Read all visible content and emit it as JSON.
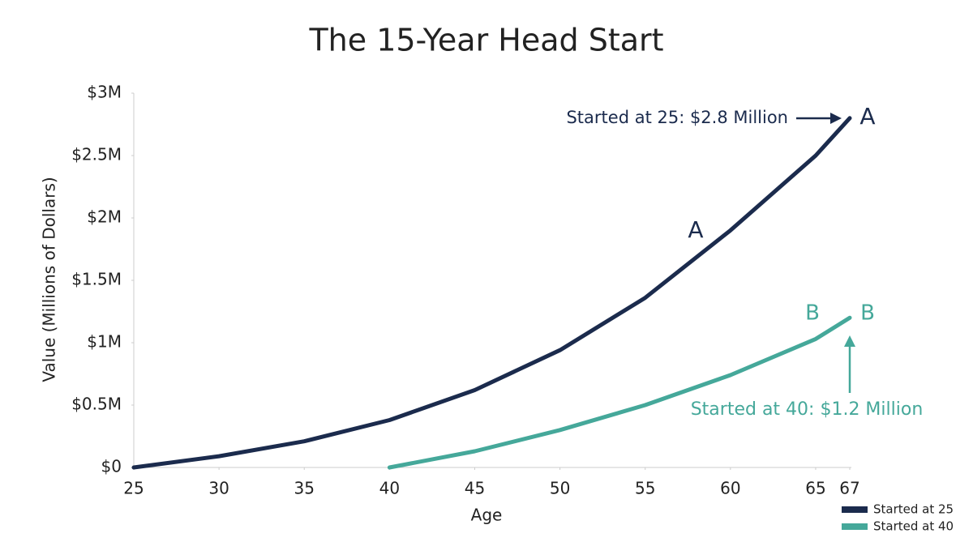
{
  "chart_data": {
    "type": "line",
    "title": "The 15-Year Head Start",
    "x_label": "Age",
    "y_label": "Value (Millions of Dollars)",
    "x": [
      25,
      30,
      35,
      40,
      45,
      50,
      55,
      60,
      65,
      67
    ],
    "series": [
      {
        "name": "Started at 25",
        "color": "#1b2b4d",
        "values": [
          0,
          0.09,
          0.21,
          0.38,
          0.62,
          0.94,
          1.36,
          1.9,
          2.5,
          2.8
        ]
      },
      {
        "name": "Started at 40",
        "color": "#45a89a",
        "values": [
          null,
          null,
          null,
          0,
          0.13,
          0.3,
          0.5,
          0.74,
          1.03,
          1.2
        ]
      }
    ],
    "xlim": [
      25,
      67
    ],
    "xticks": [
      25,
      30,
      35,
      40,
      45,
      50,
      55,
      60,
      65,
      67
    ],
    "ylim": [
      0,
      3
    ],
    "yticks": [
      {
        "value": 0,
        "label": "$0"
      },
      {
        "value": 0.5,
        "label": "$0.5M"
      },
      {
        "value": 1,
        "label": "$1M"
      },
      {
        "value": 1.5,
        "label": "$1.5M"
      },
      {
        "value": 2,
        "label": "$2M"
      },
      {
        "value": 2.5,
        "label": "$2.5M"
      },
      {
        "value": 3,
        "label": "$3M"
      }
    ],
    "grid": false,
    "legend": "bottom-right",
    "annotations": [
      {
        "text": "Started at 25: $2.8 Million",
        "color": "#1b2b4d"
      },
      {
        "text": "A",
        "color": "#1b2b4d"
      },
      {
        "text": "A",
        "color": "#1b2b4d"
      },
      {
        "text": "B",
        "color": "#45a89a"
      },
      {
        "text": "B",
        "color": "#45a89a"
      },
      {
        "text": "Started at 40: $1.2 Million",
        "color": "#45a89a"
      }
    ]
  }
}
